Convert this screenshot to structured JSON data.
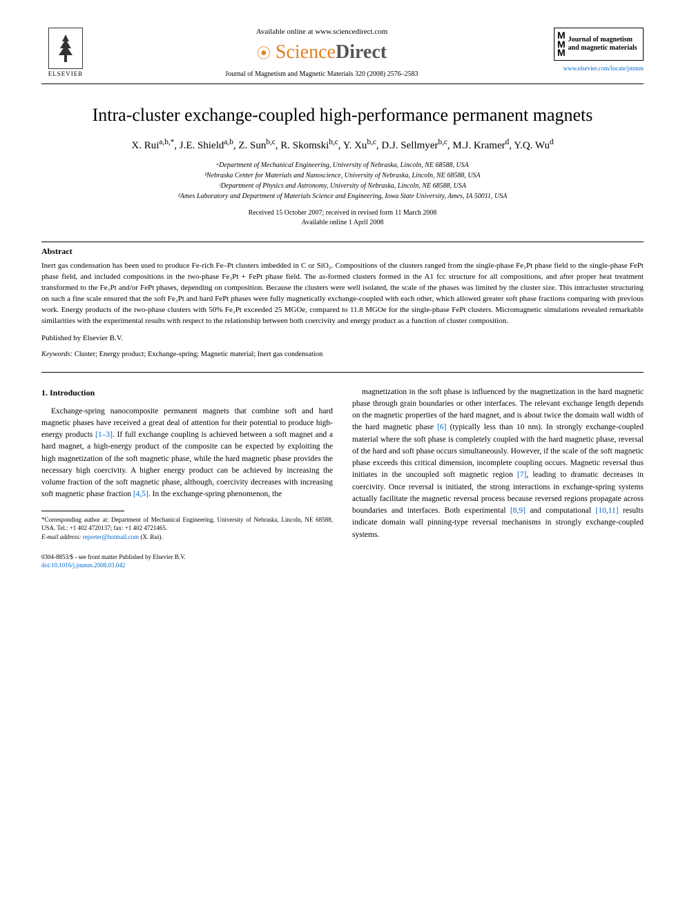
{
  "header": {
    "elsevier_label": "ELSEVIER",
    "available_online": "Available online at www.sciencedirect.com",
    "sciencedirect_prefix": "Science",
    "sciencedirect_suffix": "Direct",
    "journal_ref": "Journal of Magnetism and Magnetic Materials 320 (2008) 2576–2583",
    "journal_logo_text": "Journal of magnetism and magnetic materials",
    "journal_link": "www.elsevier.com/locate/jmmm"
  },
  "title": "Intra-cluster exchange-coupled high-performance permanent magnets",
  "authors_html": "X. Rui<sup>a,b,*</sup>, J.E. Shield<sup>a,b</sup>, Z. Sun<sup>b,c</sup>, R. Skomski<sup>b,c</sup>, Y. Xu<sup>b,c</sup>, D.J. Sellmyer<sup>b,c</sup>, M.J. Kramer<sup>d</sup>, Y.Q. Wu<sup>d</sup>",
  "affiliations": [
    "ᵃDepartment of Mechanical Engineering, University of Nebraska, Lincoln, NE 68588, USA",
    "ᵇNebraska Center for Materials and Nanoscience, University of Nebraska, Lincoln, NE 68588, USA",
    "ᶜDepartment of Physics and Astronomy, University of Nebraska, Lincoln, NE 68588, USA",
    "ᵈAmes Laboratory and Department of Materials Science and Engineering, Iowa State University, Ames, IA 50011, USA"
  ],
  "dates": {
    "received": "Received 15 October 2007; received in revised form 11 March 2008",
    "available": "Available online 1 April 2008"
  },
  "abstract": {
    "heading": "Abstract",
    "body": "Inert gas condensation has been used to produce Fe-rich Fe–Pt clusters imbedded in C or SiO₂. Compositions of the clusters ranged from the single-phase Fe₃Pt phase field to the single-phase FePt phase field, and included compositions in the two-phase Fe₃Pt + FePt phase field. The as-formed clusters formed in the A1 fcc structure for all compositions, and after proper heat treatment transformed to the Fe₃Pt and/or FePt phases, depending on composition. Because the clusters were well isolated, the scale of the phases was limited by the cluster size. This intracluster structuring on such a fine scale ensured that the soft Fe₃Pt and hard FePt phases were fully magnetically exchange-coupled with each other, which allowed greater soft phase fractions comparing with previous work. Energy products of the two-phase clusters with 50% Fe₃Pt exceeded 25 MGOe, compared to 11.8 MGOe for the single-phase FePt clusters. Micromagnetic simulations revealed remarkable similarities with the experimental results with respect to the relationship between both coercivity and energy product as a function of cluster composition.",
    "published_by": "Published by Elsevier B.V."
  },
  "keywords": {
    "label": "Keywords:",
    "text": " Cluster; Energy product; Exchange-spring; Magnetic material; Inert gas condensation"
  },
  "intro": {
    "heading": "1. Introduction",
    "left_para": "Exchange-spring nanocomposite permanent magnets that combine soft and hard magnetic phases have received a great deal of attention for their potential to produce high-energy products [1–3]. If full exchange coupling is achieved between a soft magnet and a hard magnet, a high-energy product of the composite can be expected by exploiting the high magnetization of the soft magnetic phase, while the hard magnetic phase provides the necessary high coercivity. A higher energy product can be achieved by increasing the volume fraction of the soft magnetic phase, although, coercivity decreases with increasing soft magnetic phase fraction [4,5]. In the exchange-spring phenomenon, the",
    "right_para": "magnetization in the soft phase is influenced by the magnetization in the hard magnetic phase through grain boundaries or other interfaces. The relevant exchange length depends on the magnetic properties of the hard magnet, and is about twice the domain wall width of the hard magnetic phase [6] (typically less than 10 nm). In strongly exchange-coupled material where the soft phase is completely coupled with the hard magnetic phase, reversal of the hard and soft phase occurs simultaneously. However, if the scale of the soft magnetic phase exceeds this critical dimension, incomplete coupling occurs. Magnetic reversal thus initiates in the uncoupled soft magnetic region [7], leading to dramatic decreases in coercivity. Once reversal is initiated, the strong interactions in exchange-spring systems actually facilitate the magnetic reversal process because reversed regions propagate across boundaries and interfaces. Both experimental [8,9] and computational [10,11] results indicate domain wall pinning-type reversal mechanisms in strongly exchange-coupled systems."
  },
  "footnote": {
    "corresponding": "*Corresponding author at: Department of Mechanical Engineering, University of Nebraska, Lincoln, NE 68588, USA. Tel.: +1 402 4720137; fax: +1 402 4721465.",
    "email_label": "E-mail address: ",
    "email": "repreter@hotmail.com",
    "email_suffix": " (X. Rui)."
  },
  "bottom": {
    "copyright": "0304-8853/$ - see front matter Published by Elsevier B.V.",
    "doi": "doi:10.1016/j.jmmm.2008.03.042"
  },
  "colors": {
    "link": "#0066cc",
    "sd_orange": "#e08020",
    "sd_gray": "#555555",
    "text": "#000000",
    "background": "#ffffff"
  }
}
